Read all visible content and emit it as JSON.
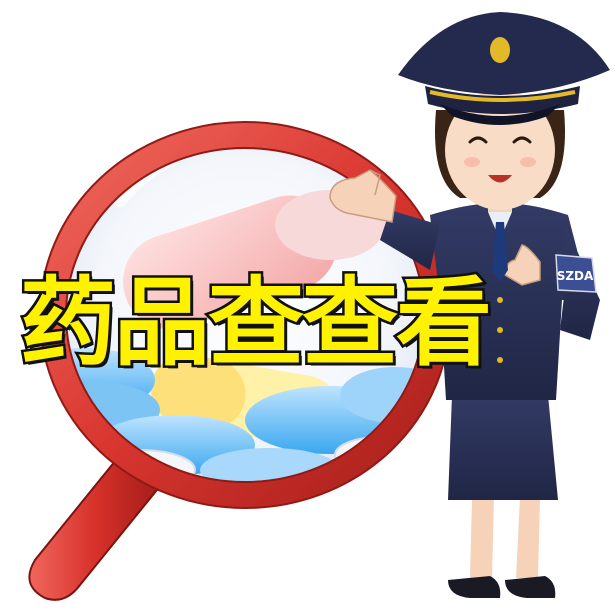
{
  "headline": "药品查查看",
  "badge_text": "SZDA",
  "colors": {
    "headline_fill": "#fff200",
    "headline_stroke": "#111111",
    "magnifier_rim": "#d9362f",
    "uniform": "#2b3358",
    "cap_band": "#1f2240",
    "cap_gold": "#e2b928"
  },
  "illustration": {
    "subject": "uniformed-officer",
    "prop": "magnifying-glass",
    "contents": "pills-and-capsules"
  }
}
